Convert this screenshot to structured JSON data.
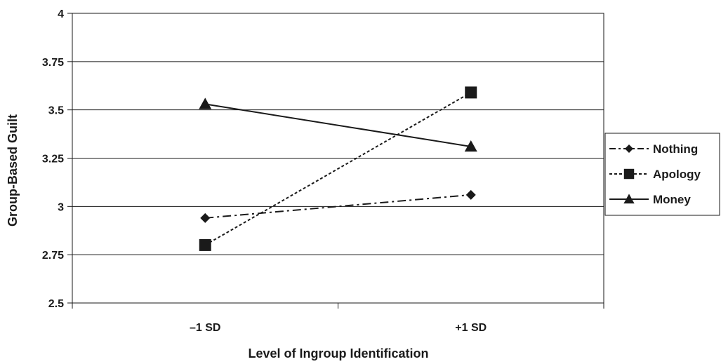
{
  "chart_data": {
    "type": "line",
    "categories": [
      "–1 SD",
      "+1 SD"
    ],
    "series": [
      {
        "name": "Nothing",
        "values": [
          2.94,
          3.06
        ],
        "marker": "diamond",
        "dash": "dashdot"
      },
      {
        "name": "Apology",
        "values": [
          2.8,
          3.59
        ],
        "marker": "square",
        "dash": "dotted"
      },
      {
        "name": "Money",
        "values": [
          3.53,
          3.31
        ],
        "marker": "triangle",
        "dash": "solid"
      }
    ],
    "title": "",
    "xlabel": "Level of Ingroup Identification",
    "ylabel": "Group-Based Guilt",
    "ylim": [
      2.5,
      4
    ],
    "yticks": [
      2.5,
      2.75,
      3,
      3.25,
      3.5,
      3.75,
      4
    ],
    "ytick_labels": [
      "2.5",
      "2.75",
      "3",
      "3.25",
      "3.5",
      "3.75",
      "4"
    ],
    "grid": true,
    "legend_position": "right",
    "colors": {
      "line": "#1a1a1a",
      "grid": "#1a1a1a",
      "background": "#ffffff"
    }
  }
}
